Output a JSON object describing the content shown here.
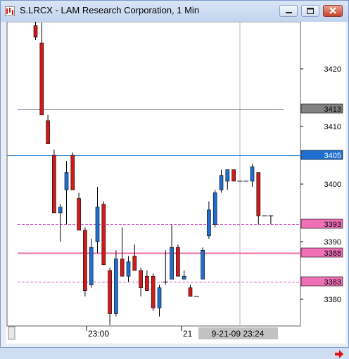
{
  "window": {
    "title": "S.LRCX - LAM Research Corporation, 1 Min",
    "buttons": {
      "minimize": "minimize",
      "maximize": "maximize",
      "close": "close"
    }
  },
  "chart_data": {
    "type": "candlestick",
    "title": "S.LRCX - LAM Research Corporation, 1 Min",
    "symbol": "S.LRCX",
    "company": "LAM Research Corporation",
    "interval": "1 Min",
    "colors": {
      "up": "#1e6fd0",
      "down": "#d21a1a",
      "background": "#ffffff",
      "grid_vertical": "#b8b8b8"
    },
    "y_axis": {
      "ticks": [
        3420,
        3410,
        3400,
        3390,
        3380
      ],
      "range": [
        3375.5,
        3428
      ]
    },
    "x_axis": {
      "labels": [
        "23:00",
        "21"
      ],
      "cursor_label": "9-21-09  23:24"
    },
    "price_tags": [
      {
        "label": "3413",
        "value": 3413,
        "style": "gray"
      },
      {
        "label": "3405",
        "value": 3405,
        "style": "blue"
      },
      {
        "label": "3393",
        "value": 3393,
        "style": "pink"
      },
      {
        "label": "3388",
        "value": 3388,
        "style": "pink"
      },
      {
        "label": "3383",
        "value": 3383,
        "style": "pink"
      }
    ],
    "horizontal_lines": [
      {
        "value": 3413,
        "color": "#7a7e9a",
        "style": "solid"
      },
      {
        "value": 3405,
        "color": "#2c7fd6",
        "style": "solid"
      },
      {
        "value": 3393,
        "color": "#d060c0",
        "style": "dashed"
      },
      {
        "value": 3388,
        "color": "#f06aa6",
        "style": "solid"
      },
      {
        "value": 3383,
        "color": "#d060c0",
        "style": "dashed"
      }
    ],
    "candles": [
      {
        "o": 3427.5,
        "h": 3428.5,
        "l": 3425,
        "c": 3425.5
      },
      {
        "o": 3424.5,
        "h": 3428,
        "l": 3412,
        "c": 3412
      },
      {
        "o": 3411,
        "h": 3412,
        "l": 3407,
        "c": 3407
      },
      {
        "o": 3405,
        "h": 3406,
        "l": 3395,
        "c": 3395
      },
      {
        "o": 3395,
        "h": 3396.5,
        "l": 3390,
        "c": 3396
      },
      {
        "o": 3399,
        "h": 3404,
        "l": 3393,
        "c": 3402
      },
      {
        "o": 3405,
        "h": 3405.5,
        "l": 3399,
        "c": 3399
      },
      {
        "o": 3397.5,
        "h": 3398.5,
        "l": 3392,
        "c": 3392
      },
      {
        "o": 3392,
        "h": 3392.5,
        "l": 3380.5,
        "c": 3381.5
      },
      {
        "o": 3382.5,
        "h": 3390.5,
        "l": 3382,
        "c": 3389
      },
      {
        "o": 3390,
        "h": 3399.5,
        "l": 3388,
        "c": 3396
      },
      {
        "o": 3396.5,
        "h": 3397,
        "l": 3386,
        "c": 3386
      },
      {
        "o": 3385,
        "h": 3385.5,
        "l": 3375.5,
        "c": 3377.5
      },
      {
        "o": 3377.5,
        "h": 3388.5,
        "l": 3377,
        "c": 3387
      },
      {
        "o": 3387,
        "h": 3392.5,
        "l": 3384,
        "c": 3384
      },
      {
        "o": 3384,
        "h": 3387.5,
        "l": 3383,
        "c": 3386.5
      },
      {
        "o": 3387.5,
        "h": 3389.5,
        "l": 3385,
        "c": 3385
      },
      {
        "o": 3385,
        "h": 3385.5,
        "l": 3380.5,
        "c": 3382
      },
      {
        "o": 3384,
        "h": 3385,
        "l": 3381.5,
        "c": 3381.5
      },
      {
        "o": 3384,
        "h": 3384.5,
        "l": 3378,
        "c": 3378.5
      },
      {
        "o": 3378.5,
        "h": 3382.5,
        "l": 3377,
        "c": 3382
      },
      {
        "o": 3383,
        "h": 3388.5,
        "l": 3382.5,
        "c": 3383
      },
      {
        "o": 3383.5,
        "h": 3393,
        "l": 3383.5,
        "c": 3389
      },
      {
        "o": 3389,
        "h": 3389.5,
        "l": 3384,
        "c": 3384
      },
      {
        "o": 3383.5,
        "h": 3385,
        "l": 3383.5,
        "c": 3384
      },
      {
        "o": 3382,
        "h": 3382.5,
        "l": 3380.5,
        "c": 3380.5
      },
      {
        "o": 3380.5,
        "h": 3380.5,
        "l": 3380.5,
        "c": 3380.5
      },
      {
        "o": 3383.5,
        "h": 3389,
        "l": 3383.5,
        "c": 3388.5
      },
      {
        "o": 3391,
        "h": 3397,
        "l": 3390.5,
        "c": 3395.5
      },
      {
        "o": 3393,
        "h": 3399,
        "l": 3392.5,
        "c": 3398.5
      },
      {
        "o": 3399,
        "h": 3402.5,
        "l": 3398.5,
        "c": 3401.5
      },
      {
        "o": 3400.5,
        "h": 3402.5,
        "l": 3399,
        "c": 3402.5
      },
      {
        "o": 3402.5,
        "h": 3402.5,
        "l": 3400.5,
        "c": 3400.5
      },
      {
        "o": 3400.5,
        "h": 3400.5,
        "l": 3400.5,
        "c": 3400.5
      },
      {
        "o": 3400.5,
        "h": 3400.5,
        "l": 3400.5,
        "c": 3400.5
      },
      {
        "o": 3400.5,
        "h": 3403.5,
        "l": 3399.5,
        "c": 3403
      },
      {
        "o": 3402,
        "h": 3402,
        "l": 3393,
        "c": 3394.5
      },
      {
        "o": 3394.5,
        "h": 3394.5,
        "l": 3394.5,
        "c": 3394.5
      },
      {
        "o": 3394.5,
        "h": 3394.5,
        "l": 3393,
        "c": 3394.5
      }
    ]
  }
}
